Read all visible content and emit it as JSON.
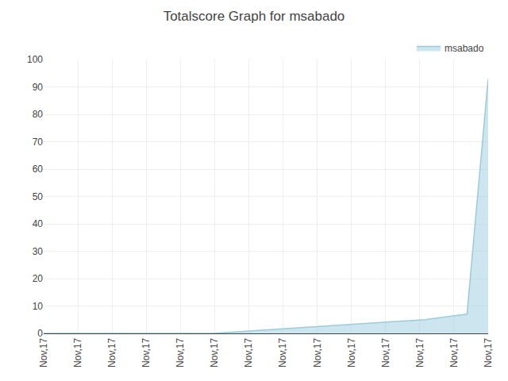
{
  "chart_data": {
    "type": "area",
    "title": "Totalscore Graph for msabado",
    "x": [
      0,
      0.6190476190476191,
      1.2380952380952381,
      1.8571428571428572,
      2.4761904761904763,
      3.0952380952380953,
      3.7142857142857144,
      4.333333333333333,
      4.9523809523809526,
      5.571428571428571,
      6.190476190476191,
      6.809523809523809,
      7.428571428571429,
      8.047619047619047,
      8.666666666666666,
      9.285714285714286,
      9.904761904761905,
      10.523809523809524,
      11.142857142857142,
      11.761904761904763,
      12.380952380952381,
      13
    ],
    "series": [
      {
        "name": "msabado",
        "color": "#99ccdd",
        "values": [
          0,
          0,
          0,
          0,
          0,
          0,
          0,
          0,
          0,
          0.5,
          1,
          1.5,
          2,
          2.5,
          3,
          3.5,
          4,
          4.5,
          5,
          6,
          7,
          93
        ]
      }
    ],
    "xlim": [
      0,
      13
    ],
    "xticks": [
      {
        "value": 0,
        "label": "Nov,17"
      },
      {
        "value": 1,
        "label": "Nov,17"
      },
      {
        "value": 2,
        "label": "Nov,17"
      },
      {
        "value": 3,
        "label": "Nov,17"
      },
      {
        "value": 4,
        "label": "Nov,17"
      },
      {
        "value": 5,
        "label": "Nov,17"
      },
      {
        "value": 6,
        "label": "Nov,17"
      },
      {
        "value": 7,
        "label": "Nov,17"
      },
      {
        "value": 8,
        "label": "Nov,17"
      },
      {
        "value": 9,
        "label": "Nov,17"
      },
      {
        "value": 10,
        "label": "Nov,17"
      },
      {
        "value": 11,
        "label": "Nov,17"
      },
      {
        "value": 12,
        "label": "Nov,17"
      },
      {
        "value": 13,
        "label": "Nov,17"
      }
    ],
    "ylim": [
      0,
      100
    ],
    "yticks": [
      0,
      10,
      20,
      30,
      40,
      50,
      60,
      70,
      80,
      90,
      100
    ],
    "grid": true,
    "legend": "upper right"
  }
}
